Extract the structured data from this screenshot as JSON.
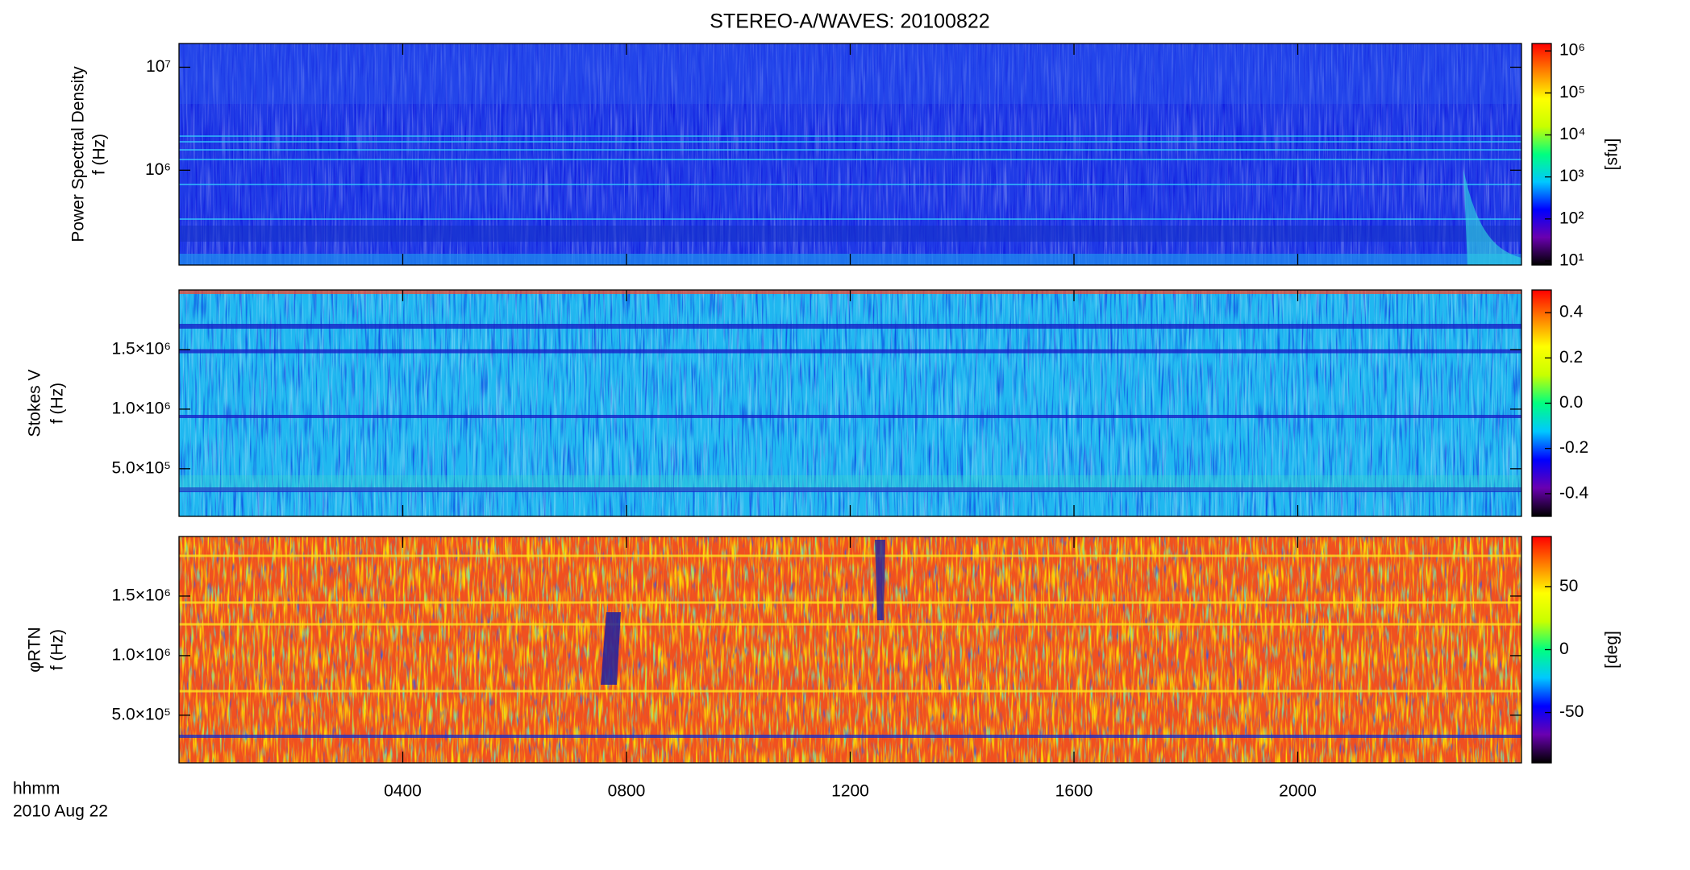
{
  "title": "STEREO-A/WAVES: 20100822",
  "time_axis": {
    "label": "hhmm",
    "date": "2010 Aug 22",
    "xlim": [
      0,
      24
    ],
    "xticks": [
      {
        "value": 4,
        "label": "0400"
      },
      {
        "value": 8,
        "label": "0800"
      },
      {
        "value": 12,
        "label": "1200"
      },
      {
        "value": 16,
        "label": "1600"
      },
      {
        "value": 20,
        "label": "2000"
      }
    ]
  },
  "colormap": [
    "#000000",
    "#6a00b0",
    "#0000ff",
    "#00c8ff",
    "#00ff80",
    "#c8ff00",
    "#ffff00",
    "#ff8000",
    "#ff0000"
  ],
  "chart_data": [
    {
      "type": "spectrogram",
      "ylabel": [
        "Power Spectral Density",
        "f (Hz)"
      ],
      "ylog": true,
      "ylim": [
        120000,
        17000000
      ],
      "yticks": [
        {
          "value": 1000000,
          "label": "10⁶"
        },
        {
          "value": 10000000,
          "label": "10⁷"
        }
      ],
      "zlog": true,
      "zlim": [
        8,
        1500000
      ],
      "zlabel": "[sfu]",
      "zticks": [
        {
          "value": 10,
          "label": "10¹"
        },
        {
          "value": 100,
          "label": "10²"
        },
        {
          "value": 1000,
          "label": "10³"
        },
        {
          "value": 10000,
          "label": "10⁴"
        },
        {
          "value": 100000,
          "label": "10⁵"
        },
        {
          "value": 1000000,
          "label": "10⁶"
        }
      ]
    },
    {
      "type": "spectrogram",
      "ylabel": [
        "Stokes V",
        "f (Hz)"
      ],
      "ylog": false,
      "ylim": [
        100000,
        2000000
      ],
      "yticks": [
        {
          "value": 500000,
          "label": "5.0×10⁵"
        },
        {
          "value": 1000000,
          "label": "1.0×10⁶"
        },
        {
          "value": 1500000,
          "label": "1.5×10⁶"
        }
      ],
      "zlog": false,
      "zlim": [
        -0.5,
        0.5
      ],
      "zticks": [
        -0.4,
        -0.2,
        {
          "value": 0,
          "label": "0.0"
        },
        0.2,
        0.4
      ]
    },
    {
      "type": "spectrogram",
      "ylabel": [
        "φRTN",
        "f (Hz)"
      ],
      "ylog": false,
      "ylim": [
        100000,
        2000000
      ],
      "yticks": [
        {
          "value": 500000,
          "label": "5.0×10⁵"
        },
        {
          "value": 1000000,
          "label": "1.0×10⁶"
        },
        {
          "value": 1500000,
          "label": "1.5×10⁶"
        }
      ],
      "zlog": false,
      "zlim": [
        -90,
        90
      ],
      "zlabel": "[deg]",
      "zticks": [
        -50,
        0,
        50
      ]
    }
  ]
}
